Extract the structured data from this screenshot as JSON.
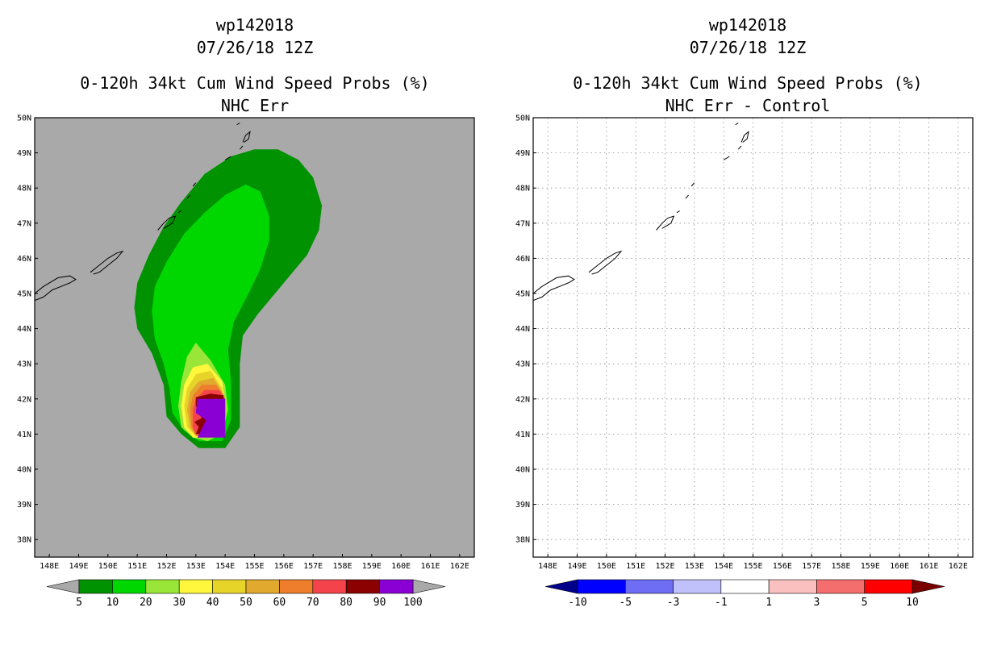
{
  "panels": [
    {
      "id": "left",
      "storm_id": "wp142018",
      "date": "07/26/18 12Z",
      "title": "0-120h 34kt Cum Wind Speed Probs (%)",
      "subtitle": "NHC Err",
      "background": "#a9a9a9",
      "grid": false,
      "colorbar": {
        "left_arrow_color": "#a9a9a9",
        "right_arrow_color": "#a9a9a9",
        "colors": [
          "#009200",
          "#00d700",
          "#99e639",
          "#fff73b",
          "#e6d429",
          "#e2a92f",
          "#ee7d2c",
          "#f4434a",
          "#8b0000",
          "#8a00d4"
        ],
        "labels": [
          "5",
          "10",
          "20",
          "30",
          "40",
          "50",
          "60",
          "70",
          "80",
          "90",
          "100"
        ]
      }
    },
    {
      "id": "right",
      "storm_id": "wp142018",
      "date": "07/26/18 12Z",
      "title": "0-120h 34kt Cum Wind Speed Probs (%)",
      "subtitle": "NHC Err - Control",
      "background": "#ffffff",
      "grid": true,
      "colorbar": {
        "left_arrow_color": "#00008b",
        "right_arrow_color": "#7a0000",
        "colors": [
          "#0000ff",
          "#6e6ef5",
          "#c0c0fa",
          "#ffffff",
          "#fac0c0",
          "#f56e6e",
          "#ff0000"
        ],
        "labels": [
          "-10",
          "-5",
          "-3",
          "-1",
          "1",
          "3",
          "5",
          "10"
        ]
      }
    }
  ],
  "chart_data": {
    "type": "filled-contour-map",
    "lon_range": [
      147.5,
      162.5
    ],
    "lat_range": [
      37.5,
      50
    ],
    "x_ticks": [
      "148E",
      "149E",
      "150E",
      "151E",
      "152E",
      "153E",
      "154E",
      "155E",
      "156E",
      "157E",
      "158E",
      "159E",
      "160E",
      "161E",
      "162E"
    ],
    "y_ticks": [
      "50N",
      "49N",
      "48N",
      "47N",
      "46N",
      "45N",
      "44N",
      "43N",
      "42N",
      "41N",
      "40N",
      "39N",
      "38N"
    ],
    "left_contours": [
      {
        "level": 5,
        "color": "#009200",
        "polygon": [
          [
            152.0,
            41.5
          ],
          [
            151.9,
            42.4
          ],
          [
            151.5,
            43.3
          ],
          [
            151.0,
            44.0
          ],
          [
            150.9,
            44.6
          ],
          [
            151.0,
            45.3
          ],
          [
            151.4,
            46.1
          ],
          [
            151.9,
            46.9
          ],
          [
            152.5,
            47.6
          ],
          [
            153.3,
            48.4
          ],
          [
            154.2,
            48.9
          ],
          [
            155.0,
            49.1
          ],
          [
            155.8,
            49.1
          ],
          [
            156.5,
            48.8
          ],
          [
            157.0,
            48.3
          ],
          [
            157.3,
            47.5
          ],
          [
            157.2,
            46.8
          ],
          [
            156.8,
            46.1
          ],
          [
            156.2,
            45.5
          ],
          [
            155.6,
            44.9
          ],
          [
            155.1,
            44.4
          ],
          [
            154.6,
            43.8
          ],
          [
            154.5,
            43.0
          ],
          [
            154.5,
            42.0
          ],
          [
            154.5,
            41.2
          ],
          [
            154.0,
            40.6
          ],
          [
            153.1,
            40.6
          ],
          [
            152.5,
            41.0
          ]
        ]
      },
      {
        "level": 10,
        "color": "#00d700",
        "polygon": [
          [
            152.2,
            41.6
          ],
          [
            152.1,
            42.3
          ],
          [
            151.9,
            43.0
          ],
          [
            151.6,
            43.7
          ],
          [
            151.5,
            44.5
          ],
          [
            151.6,
            45.2
          ],
          [
            152.0,
            45.9
          ],
          [
            152.6,
            46.7
          ],
          [
            153.3,
            47.3
          ],
          [
            154.0,
            47.8
          ],
          [
            154.7,
            48.1
          ],
          [
            155.2,
            47.9
          ],
          [
            155.5,
            47.2
          ],
          [
            155.5,
            46.5
          ],
          [
            155.2,
            45.7
          ],
          [
            154.8,
            45.0
          ],
          [
            154.3,
            44.2
          ],
          [
            154.1,
            43.4
          ],
          [
            154.2,
            42.5
          ],
          [
            154.2,
            41.4
          ],
          [
            153.9,
            40.8
          ],
          [
            153.1,
            40.8
          ],
          [
            152.6,
            41.1
          ]
        ]
      },
      {
        "level": 20,
        "color": "#99e639",
        "polygon": [
          [
            152.5,
            41.2
          ],
          [
            152.4,
            41.8
          ],
          [
            152.5,
            42.5
          ],
          [
            152.7,
            43.2
          ],
          [
            153.0,
            43.6
          ],
          [
            153.5,
            43.1
          ],
          [
            154.0,
            42.4
          ],
          [
            154.1,
            41.7
          ],
          [
            153.9,
            41.0
          ],
          [
            153.4,
            40.8
          ],
          [
            152.9,
            40.9
          ]
        ]
      },
      {
        "level": 30,
        "color": "#fff73b",
        "polygon": [
          [
            152.6,
            41.2
          ],
          [
            152.5,
            41.8
          ],
          [
            152.6,
            42.4
          ],
          [
            152.9,
            42.9
          ],
          [
            153.4,
            43.0
          ],
          [
            153.9,
            42.5
          ],
          [
            154.0,
            41.8
          ],
          [
            153.9,
            41.1
          ],
          [
            153.4,
            40.9
          ],
          [
            152.9,
            40.9
          ]
        ]
      },
      {
        "level": 40,
        "color": "#e6d429",
        "polygon": [
          [
            152.7,
            41.2
          ],
          [
            152.6,
            41.8
          ],
          [
            152.7,
            42.3
          ],
          [
            153.0,
            42.7
          ],
          [
            153.5,
            42.8
          ],
          [
            153.9,
            42.3
          ],
          [
            154.0,
            41.7
          ],
          [
            153.9,
            41.1
          ],
          [
            153.4,
            40.95
          ],
          [
            153.0,
            40.95
          ]
        ]
      },
      {
        "level": 50,
        "color": "#e2a92f",
        "polygon": [
          [
            152.8,
            41.2
          ],
          [
            152.7,
            41.7
          ],
          [
            152.8,
            42.2
          ],
          [
            153.1,
            42.5
          ],
          [
            153.6,
            42.6
          ],
          [
            153.9,
            42.2
          ],
          [
            154.0,
            41.7
          ],
          [
            153.9,
            41.1
          ],
          [
            153.4,
            40.95
          ],
          [
            153.0,
            40.95
          ]
        ]
      },
      {
        "level": 60,
        "color": "#ee7d2c",
        "polygon": [
          [
            152.85,
            41.2
          ],
          [
            152.8,
            41.7
          ],
          [
            152.9,
            42.1
          ],
          [
            153.2,
            42.4
          ],
          [
            153.7,
            42.4
          ],
          [
            153.95,
            42.1
          ],
          [
            154.0,
            41.6
          ],
          [
            153.9,
            41.05
          ],
          [
            153.4,
            40.95
          ],
          [
            153.0,
            40.95
          ]
        ]
      },
      {
        "level": 70,
        "color": "#f4434a",
        "polygon": [
          [
            152.9,
            41.2
          ],
          [
            152.9,
            41.7
          ],
          [
            153.0,
            42.0
          ],
          [
            153.3,
            42.25
          ],
          [
            153.8,
            42.25
          ],
          [
            154.0,
            42.0
          ],
          [
            154.0,
            41.5
          ],
          [
            153.9,
            41.0
          ],
          [
            153.0,
            41.0
          ]
        ]
      },
      {
        "level": 80,
        "color": "#8b0000",
        "polygon": [
          [
            153.0,
            41.0
          ],
          [
            153.1,
            41.2
          ],
          [
            152.95,
            41.35
          ],
          [
            153.2,
            41.45
          ],
          [
            153.0,
            41.8
          ],
          [
            153.0,
            42.05
          ],
          [
            153.5,
            42.15
          ],
          [
            153.95,
            42.1
          ],
          [
            153.95,
            41.0
          ]
        ]
      },
      {
        "level": 90,
        "color": "#8a00d4",
        "polygon": [
          [
            153.05,
            40.9
          ],
          [
            153.35,
            41.4
          ],
          [
            153.0,
            41.6
          ],
          [
            153.05,
            42.0
          ],
          [
            154.0,
            42.0
          ],
          [
            154.0,
            40.9
          ]
        ]
      }
    ],
    "coastlines": [
      [
        [
          147.5,
          45.0
        ],
        [
          147.8,
          45.2
        ],
        [
          148.0,
          45.3
        ],
        [
          148.3,
          45.45
        ],
        [
          148.7,
          45.5
        ],
        [
          148.9,
          45.4
        ],
        [
          148.7,
          45.3
        ],
        [
          148.4,
          45.2
        ],
        [
          148.1,
          45.1
        ],
        [
          147.8,
          44.9
        ],
        [
          147.5,
          44.8
        ]
      ],
      [
        [
          149.4,
          45.6
        ],
        [
          149.7,
          45.8
        ],
        [
          150.0,
          46.0
        ],
        [
          150.3,
          46.15
        ],
        [
          150.5,
          46.2
        ],
        [
          150.3,
          46.0
        ],
        [
          150.0,
          45.8
        ],
        [
          149.7,
          45.6
        ],
        [
          149.5,
          45.55
        ]
      ],
      [
        [
          151.7,
          46.8
        ],
        [
          151.9,
          47.0
        ],
        [
          152.1,
          47.15
        ],
        [
          152.3,
          47.2
        ],
        [
          152.2,
          47.0
        ],
        [
          151.9,
          46.85
        ]
      ],
      [
        [
          152.4,
          47.3
        ],
        [
          152.5,
          47.35
        ]
      ],
      [
        [
          152.7,
          47.7
        ],
        [
          152.8,
          47.8
        ]
      ],
      [
        [
          152.9,
          48.05
        ],
        [
          153.0,
          48.15
        ]
      ],
      [
        [
          154.0,
          48.8
        ],
        [
          154.2,
          48.9
        ]
      ],
      [
        [
          154.5,
          49.1
        ],
        [
          154.6,
          49.2
        ]
      ],
      [
        [
          154.6,
          49.3
        ],
        [
          154.7,
          49.5
        ],
        [
          154.85,
          49.6
        ],
        [
          154.8,
          49.4
        ],
        [
          154.65,
          49.3
        ]
      ],
      [
        [
          154.4,
          49.8
        ],
        [
          154.5,
          49.85
        ]
      ]
    ]
  }
}
